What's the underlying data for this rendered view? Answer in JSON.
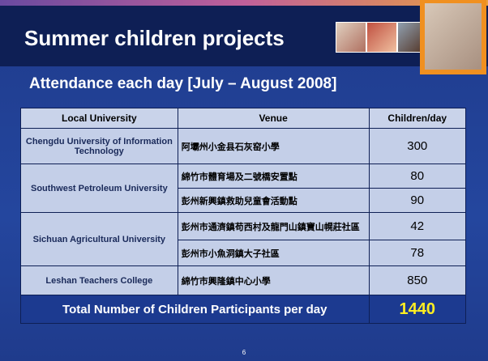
{
  "header": {
    "title": "Summer children projects",
    "subtitle": "Attendance each day [July – August 2008]"
  },
  "table": {
    "columns": [
      "Local University",
      "Venue",
      "Children/day"
    ],
    "groups": [
      {
        "university": "Chengdu University of Information Technology",
        "sites": [
          {
            "venue": "阿壩州小金县石灰窑小學",
            "children": 300
          }
        ]
      },
      {
        "university": "Southwest Petroleum University",
        "sites": [
          {
            "venue": "綿竹市體育場及二號橋安置點",
            "children": 80
          },
          {
            "venue": "彭州新興鎮救助兒童會活動點",
            "children": 90
          }
        ]
      },
      {
        "university": "Sichuan Agricultural University",
        "sites": [
          {
            "venue": "彭州市通濟鎮苟西村及龍門山鎮寶山幌莊社區",
            "children": 42
          },
          {
            "venue": "彭州市小魚洞鎮大子社區",
            "children": 78
          }
        ]
      },
      {
        "university": "Leshan Teachers College",
        "sites": [
          {
            "venue": "綿竹市興隆鎮中心小學",
            "children": 850
          }
        ]
      }
    ],
    "total": {
      "label": "Total Number of Children Participants per day",
      "value": 1440
    }
  },
  "footer": {
    "page": "6"
  }
}
